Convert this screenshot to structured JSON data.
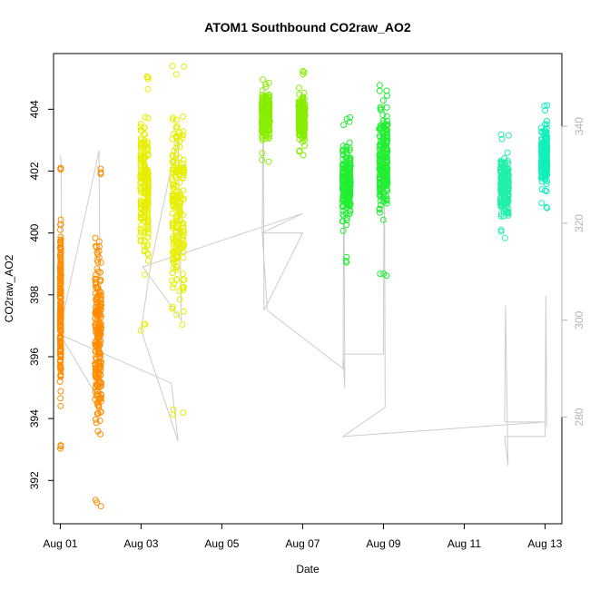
{
  "chart_data": {
    "type": "scatter",
    "title": "ATOM1 Southbound CO2raw_AO2",
    "xlabel": "Date",
    "ylabel": "CO2raw_AO2",
    "y2label": "",
    "x_axis_kind": "date",
    "xlim": [
      "2023-07-31T20:00",
      "2023-08-13T10:00"
    ],
    "ylim": [
      390.6,
      405.8
    ],
    "y2lim": [
      258,
      355
    ],
    "x_ticks": [
      {
        "x": "2023-08-01T00:00",
        "label": "Aug 01"
      },
      {
        "x": "2023-08-03T00:00",
        "label": "Aug 03"
      },
      {
        "x": "2023-08-05T00:00",
        "label": "Aug 05"
      },
      {
        "x": "2023-08-07T00:00",
        "label": "Aug 07"
      },
      {
        "x": "2023-08-09T00:00",
        "label": "Aug 09"
      },
      {
        "x": "2023-08-11T00:00",
        "label": "Aug 11"
      },
      {
        "x": "2023-08-13T00:00",
        "label": "Aug 13"
      }
    ],
    "y_ticks": [
      392,
      394,
      396,
      398,
      400,
      402,
      404
    ],
    "y2_ticks": [
      280,
      300,
      320,
      340
    ],
    "grid": false,
    "legend": "none",
    "point_series": [
      {
        "color": "#ff8c00",
        "x": [
          "2023-08-01T00:00",
          "2023-08-01T00:10",
          "2023-08-01T00:20"
        ],
        "y_range": [
          392.9,
          402.2
        ],
        "y_center": 397.5,
        "x_jitter_hours": 0.4
      },
      {
        "color": "#ff8c00",
        "x": [
          "2023-08-01T21:00",
          "2023-08-01T22:00",
          "2023-08-01T23:00",
          "2023-08-02T00:00"
        ],
        "y_range": [
          391.1,
          402.1
        ],
        "y_center": 396.5,
        "x_jitter_hours": 1.2
      },
      {
        "color": "#e6ee00",
        "x": [
          "2023-08-03T00:00",
          "2023-08-03T02:00",
          "2023-08-03T04:00"
        ],
        "y_range": [
          396.8,
          405.1
        ],
        "y_center": 401.5,
        "x_jitter_hours": 1.1
      },
      {
        "color": "#e6ee00",
        "x": [
          "2023-08-03T19:00",
          "2023-08-03T21:00",
          "2023-08-03T23:00",
          "2023-08-04T01:00"
        ],
        "y_range": [
          394.1,
          405.4
        ],
        "y_center": 400.8,
        "x_jitter_hours": 1.6
      },
      {
        "color": "#88ee00",
        "x": [
          "2023-08-06T00:00",
          "2023-08-06T02:00",
          "2023-08-06T04:00"
        ],
        "y_range": [
          402.3,
          405.1
        ],
        "y_center": 403.8,
        "x_jitter_hours": 1.1
      },
      {
        "color": "#88ee00",
        "x": [
          "2023-08-07T00:00",
          "2023-08-06T22:00",
          "2023-08-07T01:00"
        ],
        "y_range": [
          402.4,
          405.3
        ],
        "y_center": 403.7,
        "x_jitter_hours": 1.1
      },
      {
        "color": "#22ee33",
        "x": [
          "2023-08-08T00:00",
          "2023-08-08T02:00",
          "2023-08-08T04:00"
        ],
        "y_range": [
          399.0,
          403.8
        ],
        "y_center": 401.7,
        "x_jitter_hours": 1.2
      },
      {
        "color": "#22ee33",
        "x": [
          "2023-08-08T22:00",
          "2023-08-09T00:00",
          "2023-08-09T02:00"
        ],
        "y_range": [
          398.6,
          404.8
        ],
        "y_center": 402.4,
        "x_jitter_hours": 1.2
      },
      {
        "color": "#1ff0a8",
        "x": [
          "2023-08-11T22:00",
          "2023-08-12T00:00",
          "2023-08-12T02:00"
        ],
        "y_range": [
          399.8,
          403.2
        ],
        "y_center": 401.6,
        "x_jitter_hours": 1.3
      },
      {
        "color": "#11f0bb",
        "x": [
          "2023-08-12T22:00",
          "2023-08-13T00:00",
          "2023-08-13T01:00"
        ],
        "y_range": [
          400.7,
          404.2
        ],
        "y_center": 402.5,
        "x_jitter_hours": 0.7
      }
    ],
    "secondary_line": {
      "color": "#cccccc",
      "note_axis": "right",
      "points": [
        [
          "2023-08-01T00:00",
          334
        ],
        [
          "2023-08-01T00:30",
          333
        ],
        [
          "2023-08-01T01:00",
          300
        ],
        [
          "2023-08-01T20:00",
          330
        ],
        [
          "2023-08-01T23:00",
          335
        ],
        [
          "2023-08-02T00:00",
          283
        ],
        [
          "2023-08-01T00:00",
          297
        ],
        [
          "2023-08-03T18:00",
          287
        ],
        [
          "2023-08-03T22:00",
          275
        ],
        [
          "2023-08-03T00:00",
          298
        ],
        [
          "2023-08-03T06:00",
          312
        ],
        [
          "2023-08-03T22:00",
          338
        ],
        [
          "2023-08-04T00:00",
          300
        ],
        [
          "2023-08-03T01:00",
          311
        ],
        [
          "2023-08-07T00:00",
          322
        ],
        [
          "2023-08-06T00:00",
          318
        ],
        [
          "2023-08-06T00:30",
          349
        ],
        [
          "2023-08-06T01:00",
          302
        ],
        [
          "2023-08-07T00:00",
          318
        ],
        [
          "2023-08-06T00:00",
          318
        ],
        [
          "2023-08-06T03:00",
          302
        ],
        [
          "2023-08-08T00:00",
          290
        ],
        [
          "2023-08-08T00:30",
          337
        ],
        [
          "2023-08-08T01:00",
          286
        ],
        [
          "2023-08-08T00:00",
          293
        ],
        [
          "2023-08-09T00:00",
          293
        ],
        [
          "2023-08-09T00:30",
          346
        ],
        [
          "2023-08-09T01:00",
          282
        ],
        [
          "2023-08-08T00:00",
          276
        ],
        [
          "2023-08-13T00:00",
          279
        ],
        [
          "2023-08-12T00:00",
          279
        ],
        [
          "2023-08-12T00:30",
          303
        ],
        [
          "2023-08-12T02:00",
          270
        ],
        [
          "2023-08-12T00:00",
          276
        ],
        [
          "2023-08-13T00:00",
          276
        ],
        [
          "2023-08-13T00:30",
          305
        ],
        [
          "2023-08-13T01:00",
          278
        ]
      ]
    }
  }
}
